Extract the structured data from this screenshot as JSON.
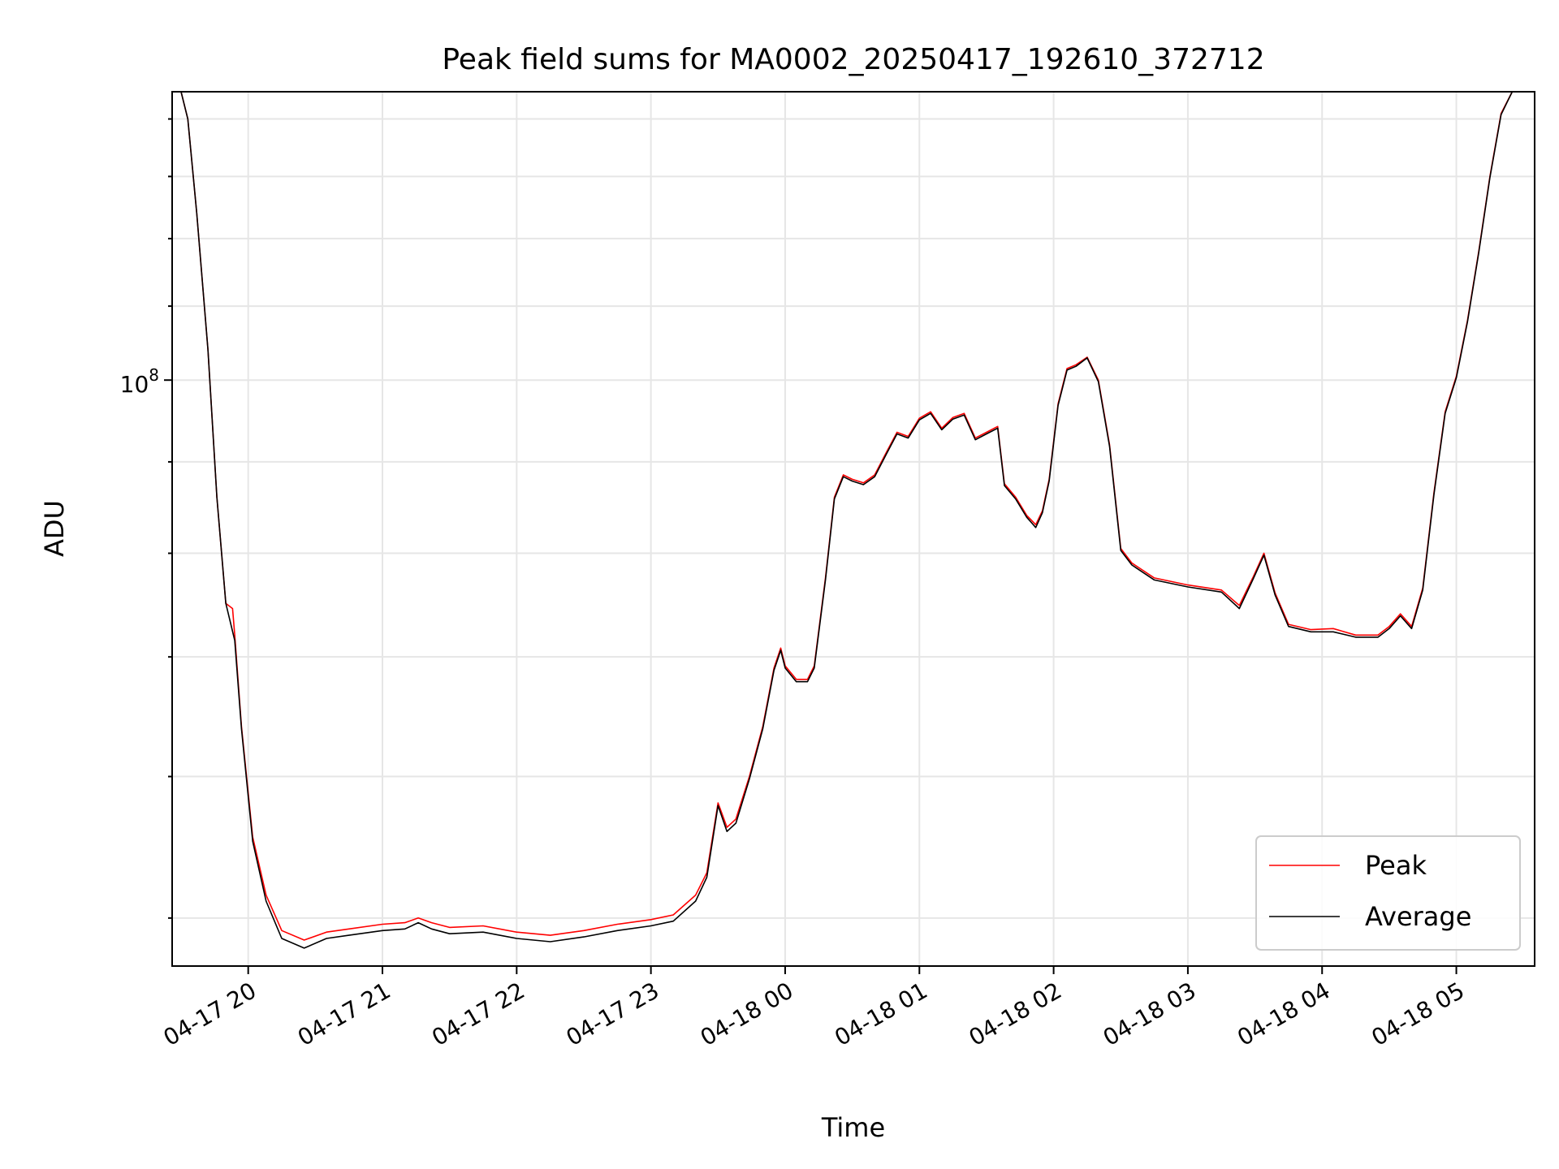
{
  "chart_data": {
    "type": "line",
    "title": "Peak field sums for MA0002_20250417_192610_372712",
    "xlabel": "Time",
    "ylabel": "ADU",
    "y_scale": "log",
    "y_tick_label": {
      "base": "10",
      "exponent": "8"
    },
    "x_ticks": [
      "04-17 20",
      "04-17 21",
      "04-17 22",
      "04-17 23",
      "04-18 00",
      "04-18 01",
      "04-18 02",
      "04-18 03",
      "04-18 04",
      "04-18 05"
    ],
    "x_range": [
      "2025-04-17 19:26",
      "2025-04-18 05:35"
    ],
    "ylim": [
      47000000,
      145000000
    ],
    "grid": true,
    "legend_placement": "lower-right",
    "series": [
      {
        "name": "Peak",
        "color": "#ff0000",
        "points": [
          [
            "2025-04-17 19:26",
            145000000
          ],
          [
            "2025-04-17 19:30",
            145000000
          ],
          [
            "2025-04-17 19:33",
            140000000
          ],
          [
            "2025-04-17 19:37",
            124000000
          ],
          [
            "2025-04-17 19:42",
            104000000
          ],
          [
            "2025-04-17 19:46",
            86000000
          ],
          [
            "2025-04-17 19:50",
            75000000
          ],
          [
            "2025-04-17 19:53",
            74500000
          ],
          [
            "2025-04-17 19:54",
            72000000
          ],
          [
            "2025-04-17 19:57",
            64000000
          ],
          [
            "2025-04-17 20:02",
            55500000
          ],
          [
            "2025-04-17 20:08",
            51500000
          ],
          [
            "2025-04-17 20:15",
            49200000
          ],
          [
            "2025-04-17 20:25",
            48600000
          ],
          [
            "2025-04-17 20:35",
            49100000
          ],
          [
            "2025-04-17 20:45",
            49300000
          ],
          [
            "2025-04-17 21:00",
            49600000
          ],
          [
            "2025-04-17 21:10",
            49700000
          ],
          [
            "2025-04-17 21:16",
            50000000
          ],
          [
            "2025-04-17 21:22",
            49700000
          ],
          [
            "2025-04-17 21:30",
            49400000
          ],
          [
            "2025-04-17 21:45",
            49500000
          ],
          [
            "2025-04-17 22:00",
            49100000
          ],
          [
            "2025-04-17 22:15",
            48900000
          ],
          [
            "2025-04-17 22:30",
            49200000
          ],
          [
            "2025-04-17 22:45",
            49600000
          ],
          [
            "2025-04-17 23:00",
            49900000
          ],
          [
            "2025-04-17 23:10",
            50200000
          ],
          [
            "2025-04-17 23:20",
            51500000
          ],
          [
            "2025-04-17 23:25",
            53000000
          ],
          [
            "2025-04-17 23:30",
            58000000
          ],
          [
            "2025-04-17 23:34",
            56200000
          ],
          [
            "2025-04-17 23:38",
            56800000
          ],
          [
            "2025-04-17 23:44",
            60000000
          ],
          [
            "2025-04-17 23:50",
            64000000
          ],
          [
            "2025-04-17 23:55",
            69000000
          ],
          [
            "2025-04-17 23:58",
            70800000
          ],
          [
            "2025-04-18 00:00",
            69200000
          ],
          [
            "2025-04-18 00:05",
            68000000
          ],
          [
            "2025-04-18 00:10",
            68000000
          ],
          [
            "2025-04-18 00:13",
            69200000
          ],
          [
            "2025-04-18 00:18",
            77500000
          ],
          [
            "2025-04-18 00:22",
            86000000
          ],
          [
            "2025-04-18 00:26",
            88500000
          ],
          [
            "2025-04-18 00:30",
            88000000
          ],
          [
            "2025-04-18 00:35",
            87600000
          ],
          [
            "2025-04-18 00:40",
            88500000
          ],
          [
            "2025-04-18 00:45",
            91000000
          ],
          [
            "2025-04-18 00:50",
            93500000
          ],
          [
            "2025-04-18 00:55",
            93000000
          ],
          [
            "2025-04-18 01:00",
            95200000
          ],
          [
            "2025-04-18 01:05",
            96000000
          ],
          [
            "2025-04-18 01:10",
            94000000
          ],
          [
            "2025-04-18 01:15",
            95300000
          ],
          [
            "2025-04-18 01:20",
            95800000
          ],
          [
            "2025-04-18 01:25",
            92800000
          ],
          [
            "2025-04-18 01:30",
            93500000
          ],
          [
            "2025-04-18 01:35",
            94200000
          ],
          [
            "2025-04-18 01:38",
            87500000
          ],
          [
            "2025-04-18 01:43",
            86000000
          ],
          [
            "2025-04-18 01:48",
            84000000
          ],
          [
            "2025-04-18 01:52",
            83000000
          ],
          [
            "2025-04-18 01:55",
            84500000
          ],
          [
            "2025-04-18 01:58",
            88000000
          ],
          [
            "2025-04-18 02:02",
            97000000
          ],
          [
            "2025-04-18 02:06",
            101500000
          ],
          [
            "2025-04-18 02:10",
            102000000
          ],
          [
            "2025-04-18 02:15",
            103000000
          ],
          [
            "2025-04-18 02:20",
            100000000
          ],
          [
            "2025-04-18 02:25",
            92000000
          ],
          [
            "2025-04-18 02:30",
            80500000
          ],
          [
            "2025-04-18 02:35",
            79000000
          ],
          [
            "2025-04-18 02:45",
            77500000
          ],
          [
            "2025-04-18 03:00",
            76800000
          ],
          [
            "2025-04-18 03:15",
            76300000
          ],
          [
            "2025-04-18 03:23",
            74800000
          ],
          [
            "2025-04-18 03:29",
            77500000
          ],
          [
            "2025-04-18 03:34",
            80000000
          ],
          [
            "2025-04-18 03:39",
            76000000
          ],
          [
            "2025-04-18 03:45",
            73000000
          ],
          [
            "2025-04-18 03:55",
            72500000
          ],
          [
            "2025-04-18 04:05",
            72600000
          ],
          [
            "2025-04-18 04:15",
            72000000
          ],
          [
            "2025-04-18 04:25",
            72000000
          ],
          [
            "2025-04-18 04:30",
            72800000
          ],
          [
            "2025-04-18 04:35",
            74000000
          ],
          [
            "2025-04-18 04:40",
            72800000
          ],
          [
            "2025-04-18 04:45",
            76500000
          ],
          [
            "2025-04-18 04:50",
            86500000
          ],
          [
            "2025-04-18 04:55",
            96000000
          ],
          [
            "2025-04-18 05:00",
            100500000
          ],
          [
            "2025-04-18 05:05",
            108000000
          ],
          [
            "2025-04-18 05:10",
            118000000
          ],
          [
            "2025-04-18 05:15",
            130000000
          ],
          [
            "2025-04-18 05:20",
            141000000
          ],
          [
            "2025-04-18 05:25",
            145000000
          ],
          [
            "2025-04-18 05:35",
            145000000
          ]
        ]
      },
      {
        "name": "Average",
        "color": "#000000",
        "points": [
          [
            "2025-04-17 19:26",
            145000000
          ],
          [
            "2025-04-17 19:30",
            145000000
          ],
          [
            "2025-04-17 19:33",
            140000000
          ],
          [
            "2025-04-17 19:37",
            124000000
          ],
          [
            "2025-04-17 19:42",
            104000000
          ],
          [
            "2025-04-17 19:46",
            86000000
          ],
          [
            "2025-04-17 19:50",
            75000000
          ],
          [
            "2025-04-17 19:54",
            71500000
          ],
          [
            "2025-04-17 19:57",
            63800000
          ],
          [
            "2025-04-17 20:02",
            55200000
          ],
          [
            "2025-04-17 20:08",
            51100000
          ],
          [
            "2025-04-17 20:15",
            48700000
          ],
          [
            "2025-04-17 20:25",
            48100000
          ],
          [
            "2025-04-17 20:35",
            48700000
          ],
          [
            "2025-04-17 20:45",
            48900000
          ],
          [
            "2025-04-17 21:00",
            49200000
          ],
          [
            "2025-04-17 21:10",
            49300000
          ],
          [
            "2025-04-17 21:16",
            49700000
          ],
          [
            "2025-04-17 21:22",
            49300000
          ],
          [
            "2025-04-17 21:30",
            49000000
          ],
          [
            "2025-04-17 21:45",
            49100000
          ],
          [
            "2025-04-17 22:00",
            48700000
          ],
          [
            "2025-04-17 22:15",
            48500000
          ],
          [
            "2025-04-17 22:30",
            48800000
          ],
          [
            "2025-04-17 22:45",
            49200000
          ],
          [
            "2025-04-17 23:00",
            49500000
          ],
          [
            "2025-04-17 23:10",
            49800000
          ],
          [
            "2025-04-17 23:20",
            51100000
          ],
          [
            "2025-04-17 23:25",
            52700000
          ],
          [
            "2025-04-17 23:30",
            57800000
          ],
          [
            "2025-04-17 23:34",
            55900000
          ],
          [
            "2025-04-17 23:38",
            56500000
          ],
          [
            "2025-04-17 23:44",
            59800000
          ],
          [
            "2025-04-17 23:50",
            63800000
          ],
          [
            "2025-04-17 23:55",
            68800000
          ],
          [
            "2025-04-17 23:58",
            70600000
          ],
          [
            "2025-04-18 00:00",
            69000000
          ],
          [
            "2025-04-18 00:05",
            67800000
          ],
          [
            "2025-04-18 00:10",
            67800000
          ],
          [
            "2025-04-18 00:13",
            69000000
          ],
          [
            "2025-04-18 00:18",
            77300000
          ],
          [
            "2025-04-18 00:22",
            85800000
          ],
          [
            "2025-04-18 00:26",
            88300000
          ],
          [
            "2025-04-18 00:30",
            87800000
          ],
          [
            "2025-04-18 00:35",
            87400000
          ],
          [
            "2025-04-18 00:40",
            88300000
          ],
          [
            "2025-04-18 00:45",
            90800000
          ],
          [
            "2025-04-18 00:50",
            93300000
          ],
          [
            "2025-04-18 00:55",
            92800000
          ],
          [
            "2025-04-18 01:00",
            95000000
          ],
          [
            "2025-04-18 01:05",
            95800000
          ],
          [
            "2025-04-18 01:10",
            93800000
          ],
          [
            "2025-04-18 01:15",
            95100000
          ],
          [
            "2025-04-18 01:20",
            95600000
          ],
          [
            "2025-04-18 01:25",
            92600000
          ],
          [
            "2025-04-18 01:30",
            93300000
          ],
          [
            "2025-04-18 01:35",
            94000000
          ],
          [
            "2025-04-18 01:38",
            87300000
          ],
          [
            "2025-04-18 01:43",
            85800000
          ],
          [
            "2025-04-18 01:48",
            83800000
          ],
          [
            "2025-04-18 01:52",
            82700000
          ],
          [
            "2025-04-18 01:55",
            84300000
          ],
          [
            "2025-04-18 01:58",
            87800000
          ],
          [
            "2025-04-18 02:02",
            96800000
          ],
          [
            "2025-04-18 02:06",
            101300000
          ],
          [
            "2025-04-18 02:10",
            101800000
          ],
          [
            "2025-04-18 02:15",
            102900000
          ],
          [
            "2025-04-18 02:20",
            99800000
          ],
          [
            "2025-04-18 02:25",
            91800000
          ],
          [
            "2025-04-18 02:30",
            80300000
          ],
          [
            "2025-04-18 02:35",
            78800000
          ],
          [
            "2025-04-18 02:45",
            77300000
          ],
          [
            "2025-04-18 03:00",
            76600000
          ],
          [
            "2025-04-18 03:15",
            76100000
          ],
          [
            "2025-04-18 03:23",
            74500000
          ],
          [
            "2025-04-18 03:29",
            77300000
          ],
          [
            "2025-04-18 03:34",
            79800000
          ],
          [
            "2025-04-18 03:39",
            75800000
          ],
          [
            "2025-04-18 03:45",
            72800000
          ],
          [
            "2025-04-18 03:55",
            72300000
          ],
          [
            "2025-04-18 04:05",
            72300000
          ],
          [
            "2025-04-18 04:15",
            71800000
          ],
          [
            "2025-04-18 04:25",
            71800000
          ],
          [
            "2025-04-18 04:30",
            72600000
          ],
          [
            "2025-04-18 04:35",
            73800000
          ],
          [
            "2025-04-18 04:40",
            72600000
          ],
          [
            "2025-04-18 04:45",
            76300000
          ],
          [
            "2025-04-18 04:50",
            86300000
          ],
          [
            "2025-04-18 04:55",
            95800000
          ],
          [
            "2025-04-18 05:00",
            100300000
          ],
          [
            "2025-04-18 05:05",
            107800000
          ],
          [
            "2025-04-18 05:10",
            117800000
          ],
          [
            "2025-04-18 05:15",
            129800000
          ],
          [
            "2025-04-18 05:20",
            140800000
          ],
          [
            "2025-04-18 05:25",
            145000000
          ],
          [
            "2025-04-18 05:35",
            145000000
          ]
        ]
      }
    ]
  }
}
